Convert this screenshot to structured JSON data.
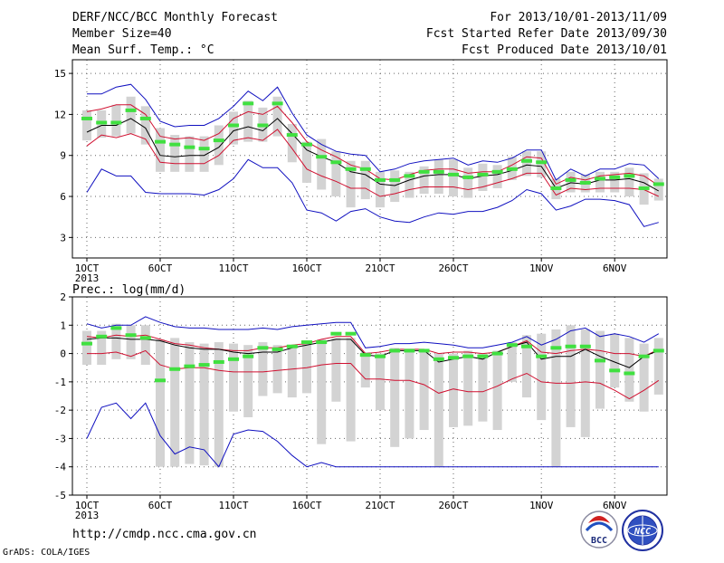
{
  "header": {
    "title": "DERF/NCC/BCC Monthly Forecast",
    "member_size": "Member Size=40",
    "variable": "Mean Surf. Temp.: °C",
    "period": "For 2013/10/01-2013/11/09",
    "refer_date": "Fcst Started Refer Date 2013/09/30",
    "produced_date": "Fcst Produced Date 2013/10/01"
  },
  "footer": {
    "url": "http://cmdp.ncc.cma.gov.cn",
    "credit": "GrADS: COLA/IGES",
    "logo_bcc": "BCC",
    "logo_ncc": "NCC"
  },
  "colors": {
    "box": "#d3d3d3",
    "mean": "#40e040",
    "median": "#000000",
    "inner": "#d01030",
    "outer": "#1010c0"
  },
  "chart_data": [
    {
      "type": "line",
      "name": "Mean Surf. Temp.",
      "ylabel": "Mean Surf. Temp.: °C",
      "ylim": [
        1.5,
        16
      ],
      "yticks": [
        3,
        6,
        9,
        12,
        15
      ],
      "x": [
        1,
        2,
        3,
        4,
        5,
        6,
        7,
        8,
        9,
        10,
        11,
        12,
        13,
        14,
        15,
        16,
        17,
        18,
        19,
        20,
        21,
        22,
        23,
        24,
        25,
        26,
        27,
        28,
        29,
        30,
        31,
        32,
        33,
        34,
        35,
        36,
        37,
        38,
        39,
        40
      ],
      "xticks": [
        {
          "day": 1,
          "label": "1OCT",
          "sub": "2013"
        },
        {
          "day": 6,
          "label": "6OCT"
        },
        {
          "day": 11,
          "label": "11OCT"
        },
        {
          "day": 16,
          "label": "16OCT"
        },
        {
          "day": 21,
          "label": "21OCT"
        },
        {
          "day": 26,
          "label": "26OCT"
        },
        {
          "day": 32,
          "label": "1NOV"
        },
        {
          "day": 37,
          "label": "6NOV"
        }
      ],
      "grid": true,
      "series": {
        "max": [
          13.5,
          13.5,
          14.0,
          14.2,
          13.1,
          11.5,
          11.1,
          11.2,
          11.2,
          11.7,
          12.6,
          13.7,
          13.0,
          14.0,
          12.1,
          10.5,
          9.8,
          9.3,
          9.1,
          9.0,
          7.8,
          8.0,
          8.4,
          8.6,
          8.7,
          8.8,
          8.3,
          8.6,
          8.5,
          8.8,
          9.4,
          9.4,
          7.2,
          8.0,
          7.5,
          8.0,
          8.0,
          8.4,
          8.3,
          7.3
        ],
        "q_high": [
          12.2,
          12.4,
          12.7,
          12.7,
          12.0,
          10.4,
          10.2,
          10.3,
          10.1,
          10.6,
          11.7,
          12.2,
          12.0,
          12.6,
          11.4,
          10.0,
          9.4,
          8.9,
          8.3,
          8.0,
          7.3,
          7.2,
          7.6,
          7.9,
          8.0,
          8.0,
          7.7,
          7.8,
          7.8,
          8.3,
          8.9,
          8.8,
          6.9,
          7.4,
          7.2,
          7.5,
          7.6,
          7.7,
          7.5,
          6.8
        ],
        "median": [
          10.7,
          11.2,
          11.2,
          11.7,
          11.0,
          9.0,
          8.9,
          9.0,
          9.0,
          9.6,
          10.8,
          11.1,
          10.8,
          11.7,
          10.6,
          9.4,
          8.9,
          8.5,
          7.8,
          7.6,
          6.9,
          6.8,
          7.2,
          7.5,
          7.6,
          7.6,
          7.3,
          7.5,
          7.6,
          7.9,
          8.3,
          8.2,
          6.6,
          7.0,
          6.9,
          7.2,
          7.2,
          7.3,
          7.0,
          6.4
        ],
        "q_low": [
          9.7,
          10.5,
          10.3,
          10.6,
          10.2,
          8.5,
          8.4,
          8.4,
          8.4,
          9.0,
          10.1,
          10.3,
          10.1,
          10.9,
          9.5,
          8.0,
          7.5,
          7.1,
          6.6,
          6.6,
          6.0,
          6.2,
          6.5,
          6.7,
          6.7,
          6.7,
          6.5,
          6.7,
          7.0,
          7.3,
          7.7,
          7.7,
          6.1,
          6.6,
          6.5,
          6.6,
          6.6,
          6.6,
          6.5,
          6.0
        ],
        "mean": [
          11.7,
          11.4,
          11.4,
          12.3,
          11.7,
          10.0,
          9.8,
          9.6,
          9.5,
          10.1,
          11.2,
          12.8,
          11.2,
          12.8,
          10.5,
          9.8,
          8.9,
          8.5,
          8.0,
          8.0,
          7.2,
          7.2,
          7.5,
          7.8,
          7.8,
          7.6,
          7.4,
          7.6,
          7.8,
          8.0,
          8.6,
          8.5,
          6.6,
          7.2,
          7.0,
          7.3,
          7.4,
          7.5,
          6.6,
          6.9
        ],
        "min": [
          6.3,
          8.0,
          7.5,
          7.5,
          6.3,
          6.2,
          6.2,
          6.2,
          6.1,
          6.5,
          7.3,
          8.7,
          8.1,
          8.1,
          7.0,
          5.0,
          4.8,
          4.2,
          4.9,
          5.1,
          4.5,
          4.2,
          4.1,
          4.5,
          4.8,
          4.7,
          4.9,
          4.9,
          5.2,
          5.7,
          6.5,
          6.2,
          5.0,
          5.3,
          5.8,
          5.8,
          5.7,
          5.4,
          3.8,
          4.1
        ],
        "box_low": [
          10.1,
          10.3,
          10.4,
          10.6,
          9.8,
          7.8,
          7.8,
          7.8,
          7.8,
          8.3,
          9.8,
          10.0,
          10.0,
          10.4,
          8.5,
          7.0,
          6.5,
          6.0,
          5.2,
          5.8,
          5.2,
          5.6,
          5.9,
          6.2,
          6.2,
          6.0,
          5.9,
          6.4,
          6.6,
          7.2,
          7.5,
          7.4,
          5.8,
          6.3,
          6.3,
          6.3,
          6.3,
          6.0,
          5.4,
          5.7
        ],
        "box_high": [
          12.3,
          12.3,
          12.7,
          13.3,
          12.6,
          11.0,
          10.5,
          10.4,
          10.4,
          11.2,
          12.2,
          13.0,
          12.5,
          13.3,
          11.3,
          10.0,
          10.2,
          9.3,
          8.6,
          8.6,
          7.8,
          7.9,
          7.8,
          8.2,
          8.7,
          8.7,
          8.1,
          8.4,
          8.3,
          8.9,
          9.3,
          9.3,
          7.3,
          7.8,
          7.6,
          7.8,
          7.8,
          8.1,
          7.7,
          7.3
        ]
      }
    },
    {
      "type": "line",
      "name": "Prec.",
      "ylabel": "Prec.: log(mm/d)",
      "ylim": [
        -5,
        2
      ],
      "yticks": [
        -5,
        -4,
        -3,
        -2,
        -1,
        0,
        1,
        2
      ],
      "x": [
        1,
        2,
        3,
        4,
        5,
        6,
        7,
        8,
        9,
        10,
        11,
        12,
        13,
        14,
        15,
        16,
        17,
        18,
        19,
        20,
        21,
        22,
        23,
        24,
        25,
        26,
        27,
        28,
        29,
        30,
        31,
        32,
        33,
        34,
        35,
        36,
        37,
        38,
        39,
        40
      ],
      "xticks": [
        {
          "day": 1,
          "label": "1OCT",
          "sub": "2013"
        },
        {
          "day": 6,
          "label": "6OCT"
        },
        {
          "day": 11,
          "label": "11OCT"
        },
        {
          "day": 16,
          "label": "16OCT"
        },
        {
          "day": 21,
          "label": "21OCT"
        },
        {
          "day": 26,
          "label": "26OCT"
        },
        {
          "day": 32,
          "label": "1NOV"
        },
        {
          "day": 37,
          "label": "6NOV"
        }
      ],
      "grid": true,
      "series": {
        "max": [
          1.05,
          0.9,
          1.0,
          1.0,
          1.3,
          1.1,
          0.95,
          0.9,
          0.9,
          0.85,
          0.85,
          0.85,
          0.9,
          0.85,
          0.95,
          1.0,
          1.05,
          1.1,
          1.1,
          0.2,
          0.25,
          0.35,
          0.35,
          0.4,
          0.35,
          0.3,
          0.2,
          0.2,
          0.3,
          0.4,
          0.6,
          0.3,
          0.5,
          0.8,
          0.9,
          0.6,
          0.7,
          0.6,
          0.4,
          0.7
        ],
        "q_high": [
          0.6,
          0.55,
          0.65,
          0.6,
          0.65,
          0.5,
          0.35,
          0.3,
          0.2,
          0.15,
          0.1,
          0.1,
          0.2,
          0.2,
          0.3,
          0.35,
          0.5,
          0.6,
          0.6,
          0.0,
          0.05,
          0.15,
          0.15,
          0.15,
          0.0,
          0.05,
          0.05,
          0.0,
          0.05,
          0.25,
          0.45,
          0.05,
          0.0,
          0.1,
          0.15,
          0.1,
          0.0,
          0.0,
          -0.1,
          0.15
        ],
        "median": [
          0.5,
          0.55,
          0.55,
          0.5,
          0.5,
          0.45,
          0.3,
          0.2,
          0.15,
          0.15,
          0.05,
          0.0,
          0.05,
          0.05,
          0.2,
          0.3,
          0.4,
          0.5,
          0.5,
          -0.05,
          -0.1,
          0.1,
          0.1,
          0.1,
          -0.3,
          -0.2,
          -0.1,
          -0.2,
          0.05,
          0.25,
          0.4,
          -0.2,
          -0.1,
          -0.1,
          0.15,
          -0.1,
          -0.3,
          -0.5,
          -0.1,
          0.1
        ],
        "q_low": [
          0.0,
          0.0,
          0.05,
          -0.1,
          0.1,
          -0.4,
          -0.55,
          -0.5,
          -0.5,
          -0.6,
          -0.65,
          -0.65,
          -0.65,
          -0.6,
          -0.55,
          -0.5,
          -0.4,
          -0.35,
          -0.35,
          -0.9,
          -0.9,
          -0.95,
          -0.95,
          -1.1,
          -1.4,
          -1.25,
          -1.35,
          -1.35,
          -1.15,
          -0.9,
          -0.7,
          -1.0,
          -1.05,
          -1.05,
          -1.0,
          -1.05,
          -1.3,
          -1.6,
          -1.3,
          -0.95
        ],
        "mean": [
          0.35,
          0.6,
          0.9,
          0.65,
          0.55,
          -0.95,
          -0.55,
          -0.45,
          -0.4,
          -0.3,
          -0.2,
          -0.1,
          0.2,
          0.15,
          0.25,
          0.4,
          0.4,
          0.7,
          0.7,
          -0.05,
          -0.1,
          0.1,
          0.1,
          0.1,
          -0.2,
          -0.15,
          -0.1,
          -0.1,
          0.0,
          0.3,
          0.25,
          -0.1,
          0.2,
          0.25,
          0.25,
          -0.25,
          -0.6,
          -0.7,
          -0.1,
          0.1
        ],
        "min": [
          -3.0,
          -1.9,
          -1.75,
          -2.3,
          -1.75,
          -2.9,
          -3.55,
          -3.3,
          -3.4,
          -4.0,
          -2.85,
          -2.7,
          -2.75,
          -3.1,
          -3.6,
          -4.0,
          -3.85,
          -4.0,
          -4.0,
          -4.0,
          -4.0,
          -4.0,
          -4.0,
          -4.0,
          -4.0,
          -4.0,
          -4.0,
          -4.0,
          -4.0,
          -4.0,
          -4.0,
          -4.0,
          -4.0,
          -4.0,
          -4.0,
          -4.0,
          -4.0,
          -4.0,
          -4.0,
          -4.0
        ],
        "box_low": [
          -0.4,
          -0.4,
          -0.2,
          -0.2,
          -0.4,
          -4.0,
          -4.0,
          -3.9,
          -3.95,
          -4.0,
          -2.05,
          -2.25,
          -1.5,
          -1.4,
          -1.55,
          -1.4,
          -3.2,
          -1.7,
          -3.1,
          -1.2,
          -2.0,
          -3.3,
          -3.0,
          -2.7,
          -4.0,
          -2.6,
          -2.55,
          -2.4,
          -2.7,
          -1.0,
          -1.55,
          -2.35,
          -4.0,
          -2.6,
          -2.95,
          -1.95,
          -1.2,
          -1.7,
          -2.05,
          -1.45
        ],
        "box_high": [
          0.8,
          0.8,
          1.05,
          1.0,
          1.0,
          0.5,
          0.55,
          0.4,
          0.35,
          0.4,
          0.35,
          0.3,
          0.4,
          0.3,
          0.3,
          0.35,
          0.5,
          0.55,
          0.55,
          0.05,
          0.0,
          0.2,
          0.1,
          0.1,
          0.0,
          0.0,
          0.1,
          0.0,
          0.1,
          0.4,
          0.65,
          0.7,
          0.85,
          1.0,
          0.85,
          0.8,
          0.7,
          0.55,
          0.35,
          0.55
        ]
      }
    }
  ]
}
